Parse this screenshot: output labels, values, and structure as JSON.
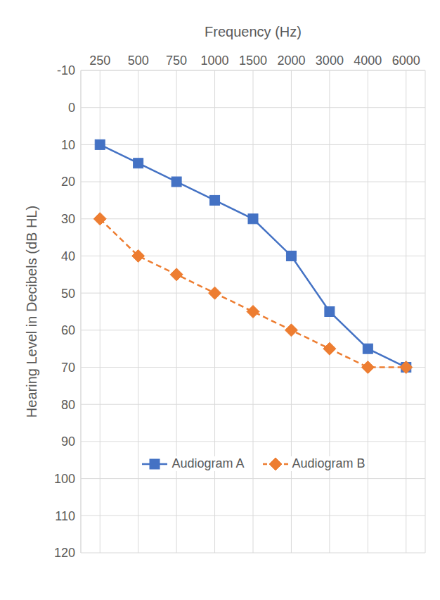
{
  "chart_data": {
    "type": "line",
    "x_label": "Frequency (Hz)",
    "y_label": "Hearing Level in Decibels (dB HL)",
    "categories": [
      "250",
      "500",
      "750",
      "1000",
      "1500",
      "2000",
      "3000",
      "4000",
      "6000"
    ],
    "series": [
      {
        "name": "Audiogram A",
        "color": "#4472c4",
        "marker": "square",
        "line_style": "solid",
        "values": [
          10,
          15,
          20,
          25,
          30,
          40,
          55,
          65,
          70
        ]
      },
      {
        "name": "Audiogram B",
        "color": "#ed7d31",
        "marker": "diamond",
        "line_style": "dashed",
        "values": [
          30,
          40,
          45,
          50,
          55,
          60,
          65,
          70,
          70
        ]
      }
    ],
    "ylim": [
      120,
      -10
    ],
    "yticks": [
      -10,
      0,
      10,
      20,
      30,
      40,
      50,
      60,
      70,
      80,
      90,
      100,
      110,
      120
    ],
    "grid": true,
    "legend": "bottom"
  }
}
